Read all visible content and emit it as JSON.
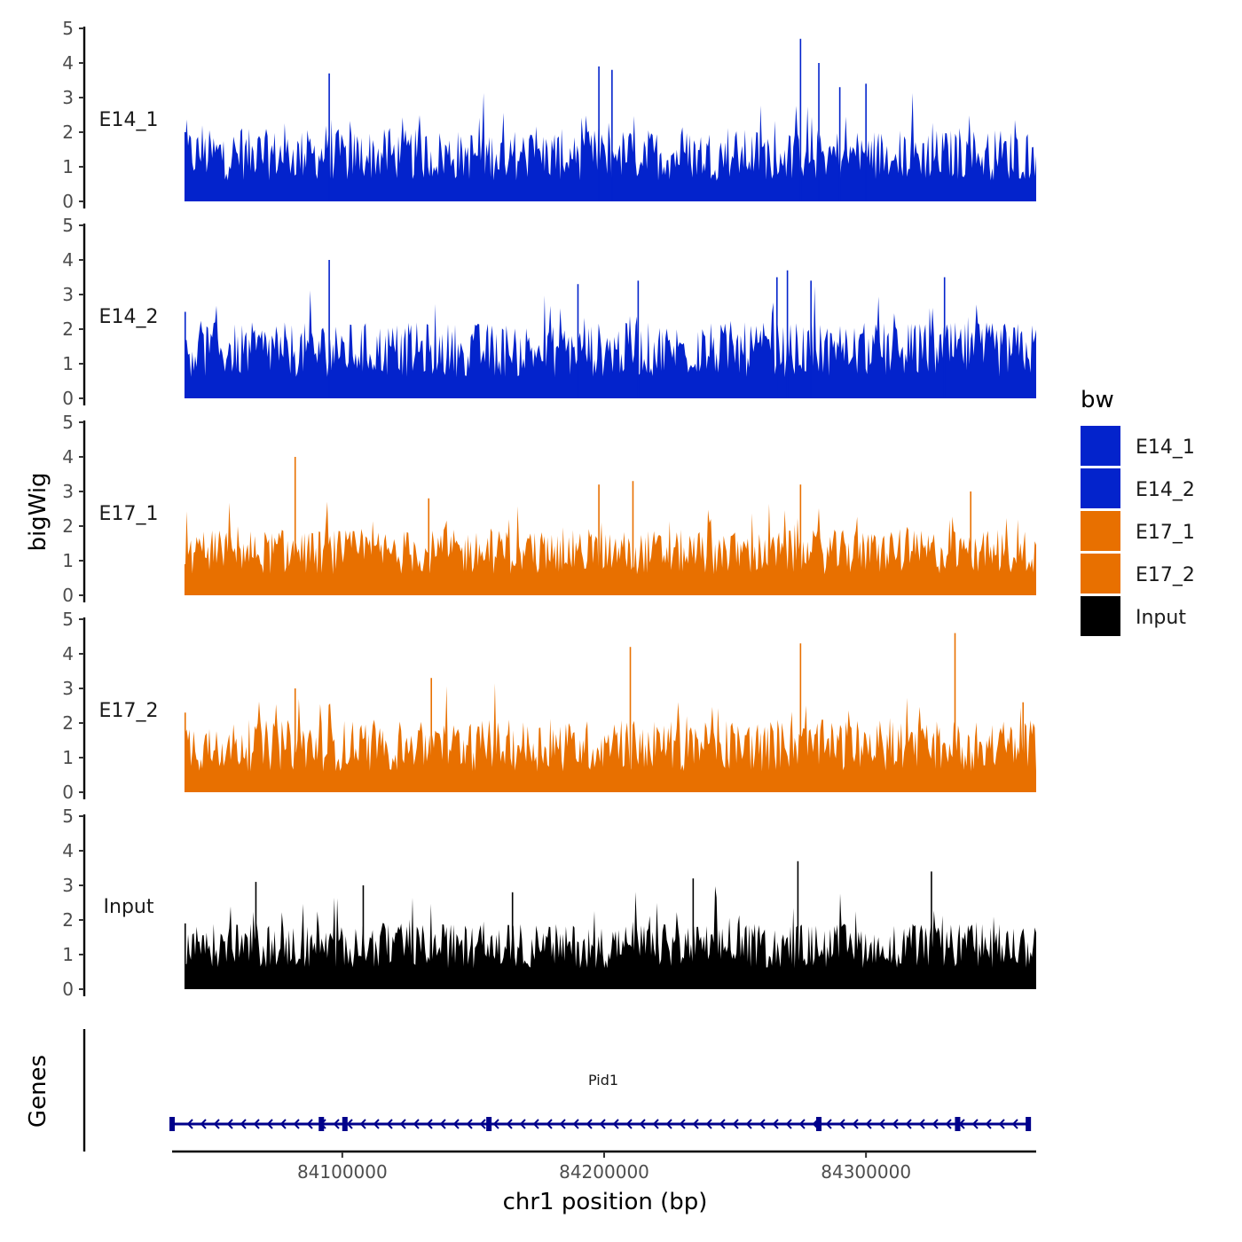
{
  "chart_data": {
    "type": "area",
    "title": "",
    "y_axis_title": "bigWig",
    "x_axis_title": "chr1 position (bp)",
    "genes_axis_title": "Genes",
    "x_range": [
      84035000,
      84365000
    ],
    "x_ticks": [
      84100000,
      84200000,
      84300000
    ],
    "x_tick_labels": [
      "84100000",
      "84200000",
      "84300000"
    ],
    "y_range": [
      0,
      5
    ],
    "y_ticks": [
      0,
      1,
      2,
      3,
      4,
      5
    ],
    "y_tick_labels": [
      "0",
      "1",
      "2",
      "3",
      "4",
      "5"
    ],
    "tracks": [
      {
        "name": "E14_1",
        "color": "#0323cc",
        "baseline": 0.6,
        "noise": 1.5,
        "x": [
          84040000,
          84095000,
          84198000,
          84203000,
          84275000,
          84282000,
          84290000,
          84300000
        ],
        "y": [
          2.0,
          3.7,
          3.9,
          3.8,
          4.7,
          4.0,
          3.3,
          3.4
        ]
      },
      {
        "name": "E14_2",
        "color": "#0323cc",
        "baseline": 0.6,
        "noise": 1.6,
        "x": [
          84040000,
          84095000,
          84190000,
          84213000,
          84266000,
          84270000,
          84279000,
          84330000
        ],
        "y": [
          2.5,
          4.0,
          3.3,
          3.4,
          3.5,
          3.7,
          3.4,
          3.5
        ]
      },
      {
        "name": "E17_1",
        "color": "#e87000",
        "baseline": 0.6,
        "noise": 1.3,
        "x": [
          84040000,
          84082000,
          84133000,
          84198000,
          84211000,
          84275000,
          84340000
        ],
        "y": [
          0.9,
          4.0,
          2.8,
          3.2,
          3.3,
          3.2,
          3.0
        ]
      },
      {
        "name": "E17_2",
        "color": "#e87000",
        "baseline": 0.6,
        "noise": 1.5,
        "x": [
          84040000,
          84082000,
          84134000,
          84210000,
          84275000,
          84334000,
          84360000
        ],
        "y": [
          2.3,
          3.0,
          3.3,
          4.2,
          4.3,
          4.6,
          2.6
        ]
      },
      {
        "name": "Input",
        "color": "#000000",
        "baseline": 0.6,
        "noise": 1.3,
        "x": [
          84040000,
          84067000,
          84108000,
          84165000,
          84234000,
          84274000,
          84325000,
          84360000
        ],
        "y": [
          1.9,
          3.1,
          3.0,
          2.8,
          3.2,
          3.7,
          3.4,
          1.0
        ]
      }
    ],
    "legend": {
      "title": "bw",
      "position": "right",
      "entries": [
        {
          "label": "E14_1",
          "color": "#0323cc"
        },
        {
          "label": "E14_2",
          "color": "#0323cc"
        },
        {
          "label": "E17_1",
          "color": "#e87000"
        },
        {
          "label": "E17_2",
          "color": "#e87000"
        },
        {
          "label": "Input",
          "color": "#000000"
        }
      ]
    },
    "genes": [
      {
        "name": "Pid1",
        "strand": "-",
        "start": 84035000,
        "end": 84362000,
        "color": "#00008b",
        "exons": [
          84035000,
          84092000,
          84101000,
          84156000,
          84282000,
          84335000,
          84362000
        ]
      }
    ]
  }
}
